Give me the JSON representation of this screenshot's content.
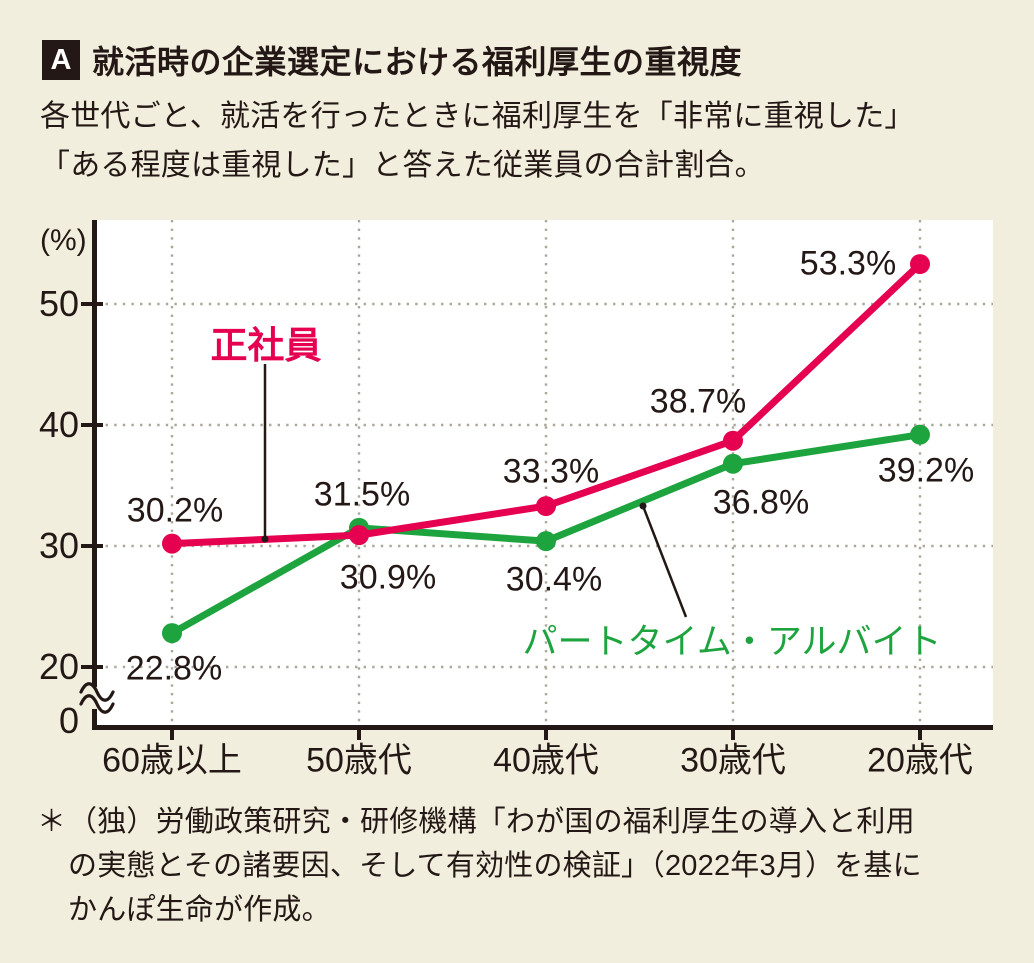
{
  "page": {
    "background": "#f2eedd",
    "text_color": "#231815"
  },
  "header": {
    "badge": "A",
    "title": "就活時の企業選定における福利厚生の重視度",
    "subtitle_line1": "各世代ごと、就活を行ったときに福利厚生を「非常に重視した」",
    "subtitle_line2": "「ある程度は重視した」と答えた従業員の合計割合。"
  },
  "chart_data": {
    "type": "line",
    "unit_label": "(%)",
    "categories": [
      "60歳以上",
      "50歳代",
      "40歳代",
      "30歳代",
      "20歳代"
    ],
    "y_ticks": [
      50,
      40,
      30,
      20,
      0
    ],
    "axis_break_between": [
      0,
      20
    ],
    "ylim_visible": [
      20,
      56
    ],
    "grid": "dotted",
    "legend_position": "inline-callout",
    "series": [
      {
        "name": "正社員",
        "color": "#e50050",
        "values": [
          30.2,
          30.9,
          33.3,
          38.7,
          53.3
        ]
      },
      {
        "name": "パートタイム・アルバイト",
        "color": "#1ea43e",
        "values": [
          22.8,
          31.5,
          30.4,
          36.8,
          39.2
        ]
      }
    ]
  },
  "footnote": {
    "marker": "＊",
    "lines": [
      "（独）労働政策研究・研修機構「わが国の福利厚生の導入と利用",
      "の実態とその諸要因、そして有効性の検証」（2022年3月）を基に",
      "かんぽ生命が作成。"
    ]
  }
}
